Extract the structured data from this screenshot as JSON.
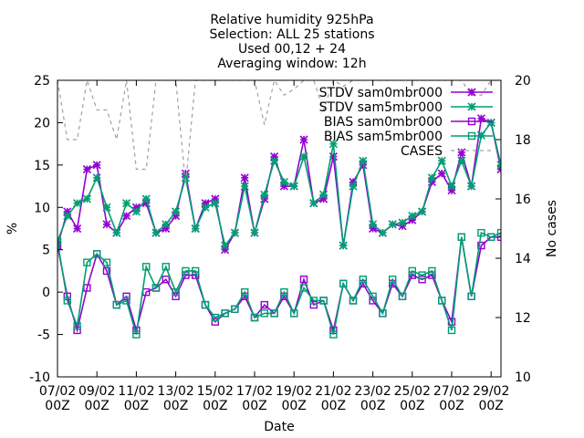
{
  "chart_data": {
    "type": "line",
    "title_lines": [
      "Relative humidity 925hPa",
      "Selection: ALL      25 stations",
      "Used 00,12 + 24",
      "Averaging window: 12h"
    ],
    "xlabel": "Date",
    "ylabel": "%",
    "y2label": "No cases",
    "x_tick_labels": [
      [
        "07/02",
        "00Z"
      ],
      [
        "09/02",
        "00Z"
      ],
      [
        "11/02",
        "00Z"
      ],
      [
        "13/02",
        "00Z"
      ],
      [
        "15/02",
        "00Z"
      ],
      [
        "17/02",
        "00Z"
      ],
      [
        "19/02",
        "00Z"
      ],
      [
        "21/02",
        "00Z"
      ],
      [
        "23/02",
        "00Z"
      ],
      [
        "25/02",
        "00Z"
      ],
      [
        "27/02",
        "00Z"
      ],
      [
        "29/02",
        "00Z"
      ]
    ],
    "xlim": [
      0,
      22.5
    ],
    "ylim": [
      -10,
      25
    ],
    "y_ticks": [
      -10,
      -5,
      0,
      5,
      10,
      15,
      20,
      25
    ],
    "y2lim": [
      10,
      20
    ],
    "y2_ticks": [
      10,
      12,
      14,
      16,
      18,
      20
    ],
    "legend_position": "top-right",
    "series": [
      {
        "name": "STDV sam0mbr000",
        "axis": "y1",
        "color": "#9400d3",
        "marker": "star",
        "x": [
          0,
          0.5,
          1,
          1.5,
          2,
          2.5,
          3,
          3.5,
          4,
          4.5,
          5,
          5.5,
          6,
          6.5,
          7,
          7.5,
          8,
          8.5,
          9,
          9.5,
          10,
          10.5,
          11,
          11.5,
          12,
          12.5,
          13,
          13.5,
          14,
          14.5,
          15,
          15.5,
          16,
          16.5,
          17,
          17.5,
          18,
          18.5,
          19,
          19.5,
          20,
          20.5,
          21,
          21.5,
          22,
          22.5
        ],
        "values": [
          5.5,
          9.5,
          7.5,
          14.5,
          15,
          8,
          7,
          9,
          10,
          10.5,
          7,
          7.5,
          9,
          14,
          7.5,
          10.5,
          11,
          5,
          7,
          13.5,
          7,
          11,
          16,
          12.5,
          12.5,
          18,
          10.5,
          11,
          16,
          5.5,
          13,
          15,
          7.5,
          7,
          8,
          7.8,
          8.5,
          9.5,
          13,
          14,
          12,
          16.5,
          12.5,
          20.5,
          20,
          14.5
        ]
      },
      {
        "name": "STDV sam5mbr000",
        "axis": "y1",
        "color": "#009e73",
        "marker": "star",
        "x": [
          0,
          0.5,
          1,
          1.5,
          2,
          2.5,
          3,
          3.5,
          4,
          4.5,
          5,
          5.5,
          6,
          6.5,
          7,
          7.5,
          8,
          8.5,
          9,
          9.5,
          10,
          10.5,
          11,
          11.5,
          12,
          12.5,
          13,
          13.5,
          14,
          14.5,
          15,
          15.5,
          16,
          16.5,
          17,
          17.5,
          18,
          18.5,
          19,
          19.5,
          20,
          20.5,
          21,
          21.5,
          22,
          22.5
        ],
        "values": [
          6,
          9,
          10.5,
          11,
          13.5,
          10,
          7,
          10.5,
          9.5,
          11,
          7,
          8,
          9.5,
          13.5,
          7.5,
          10,
          10.5,
          5.5,
          7,
          12.5,
          7,
          11.5,
          15.5,
          13,
          12.5,
          16,
          10.5,
          11.5,
          17.5,
          5.5,
          12.5,
          15.5,
          8,
          7,
          8,
          8.2,
          9,
          9.5,
          13.5,
          15.5,
          12.5,
          15.5,
          12.5,
          18.5,
          20,
          15
        ]
      },
      {
        "name": "BIAS sam0mbr000",
        "axis": "y1",
        "color": "#9400d3",
        "marker": "square",
        "x": [
          0,
          0.5,
          1,
          1.5,
          2,
          2.5,
          3,
          3.5,
          4,
          4.5,
          5,
          5.5,
          6,
          6.5,
          7,
          7.5,
          8,
          8.5,
          9,
          9.5,
          10,
          10.5,
          11,
          11.5,
          12,
          12.5,
          13,
          13.5,
          14,
          14.5,
          15,
          15.5,
          16,
          16.5,
          17,
          17.5,
          18,
          18.5,
          19,
          19.5,
          20,
          20.5,
          21,
          21.5,
          22,
          22.5
        ],
        "values": [
          5.5,
          -0.5,
          -4.5,
          0.5,
          4.5,
          2.5,
          -1.5,
          -0.5,
          -4.5,
          0,
          0.5,
          1.5,
          -0.5,
          2,
          2,
          -1.5,
          -3.5,
          -2.5,
          -2,
          -0.5,
          -3,
          -1.5,
          -2.5,
          -0.5,
          -2.5,
          1.5,
          -1.5,
          -1,
          -4.5,
          1,
          -1,
          1,
          -1,
          -2.5,
          1,
          -0.5,
          2,
          1.5,
          2,
          -1,
          -3.5,
          6.5,
          -0.5,
          5.5,
          6.5,
          6.5
        ]
      },
      {
        "name": "BIAS sam5mbr000",
        "axis": "y1",
        "color": "#009e73",
        "marker": "square",
        "x": [
          0,
          0.5,
          1,
          1.5,
          2,
          2.5,
          3,
          3.5,
          4,
          4.5,
          5,
          5.5,
          6,
          6.5,
          7,
          7.5,
          8,
          8.5,
          9,
          9.5,
          10,
          10.5,
          11,
          11.5,
          12,
          12.5,
          13,
          13.5,
          14,
          14.5,
          15,
          15.5,
          16,
          16.5,
          17,
          17.5,
          18,
          18.5,
          19,
          19.5,
          20,
          20.5,
          21,
          21.5,
          22,
          22.5
        ],
        "values": [
          6,
          -1,
          -4,
          3.5,
          4.5,
          3.5,
          -1.5,
          -1,
          -5,
          3,
          0.5,
          3,
          0,
          2.5,
          2.5,
          -1.5,
          -3,
          -2.5,
          -2,
          0,
          -3,
          -2.5,
          -2.5,
          0,
          -2.5,
          0.5,
          -1,
          -1,
          -5,
          1,
          -1,
          1.5,
          -0.5,
          -2.5,
          1.5,
          -0.5,
          2.5,
          2,
          2.5,
          -1,
          -4.5,
          6.5,
          -0.5,
          7,
          6.5,
          7
        ]
      },
      {
        "name": "CASES",
        "axis": "y2",
        "color": "#a0a0a0",
        "marker": "none",
        "dashed": true,
        "x": [
          0,
          0.5,
          1,
          1.5,
          2,
          2.5,
          3,
          3.5,
          4,
          4.5,
          5,
          5.5,
          6,
          6.5,
          7,
          7.5,
          8,
          8.5,
          9,
          9.5,
          10,
          10.5,
          11,
          11.5,
          12,
          12.5,
          13,
          13.5,
          14,
          14.5,
          15,
          15.5,
          16,
          16.5,
          17,
          17.5,
          18,
          18.5,
          19,
          19.5,
          20,
          20.5,
          21,
          21.5,
          22,
          22.5
        ],
        "values": [
          20,
          18,
          18,
          20,
          19,
          19,
          18,
          20,
          17,
          17,
          20,
          20,
          20,
          16.5,
          20,
          20,
          20,
          20,
          20,
          20,
          20,
          18.5,
          20,
          19.5,
          19.7,
          20,
          20,
          19,
          20,
          19.8,
          20,
          20,
          20,
          20,
          20,
          20,
          20,
          20,
          20,
          20,
          20,
          20,
          19.5,
          19.5,
          20,
          20
        ]
      }
    ]
  }
}
